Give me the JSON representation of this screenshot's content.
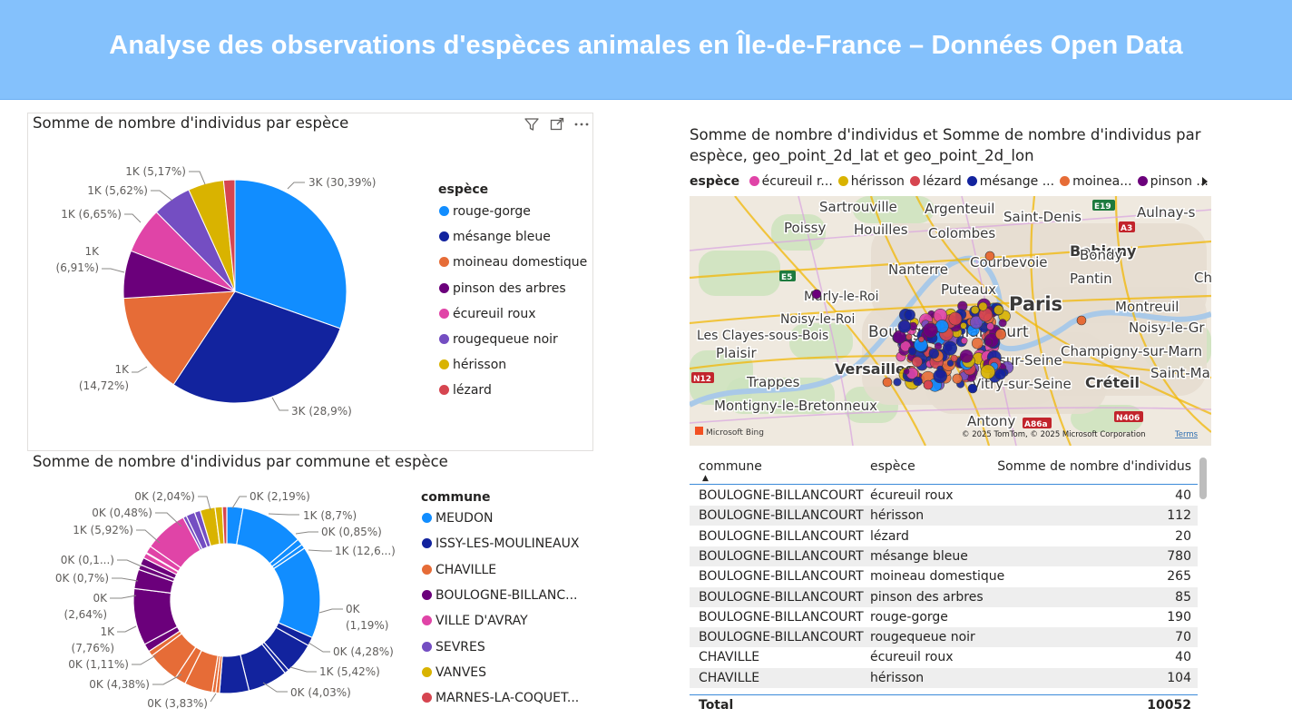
{
  "banner": {
    "title": "Analyse des observations d'espèces animales en Île-de-France – Données Open Data"
  },
  "pie_visual": {
    "title": "Somme de nombre d'individus par espèce",
    "legend_title": "espèce",
    "icons": [
      "filter-icon",
      "focus-mode-icon",
      "more-options-icon"
    ]
  },
  "donut_visual": {
    "title": "Somme de nombre d'individus par commune et espèce",
    "legend_title": "commune"
  },
  "map_visual": {
    "title": "Somme de nombre d'individus et Somme de nombre d'individus par espèce, geo_point_2d_lat et geo_point_2d_lon",
    "legend_title": "espèce",
    "legend_items": [
      {
        "label": "écureuil r...",
        "color": "#e044a7"
      },
      {
        "label": "hérisson",
        "color": "#d9b300"
      },
      {
        "label": "lézard",
        "color": "#d64550"
      },
      {
        "label": "mésange ...",
        "color": "#12239e"
      },
      {
        "label": "moinea...",
        "color": "#e66c37"
      },
      {
        "label": "pinson ...",
        "color": "#6b007b"
      }
    ],
    "places": [
      {
        "name": "Sartrouville"
      },
      {
        "name": "Argenteuil"
      },
      {
        "name": "Saint-Denis"
      },
      {
        "name": "Aulnay-s"
      },
      {
        "name": "Poissy"
      },
      {
        "name": "Houilles"
      },
      {
        "name": "Colombes"
      },
      {
        "name": "Bobigny"
      },
      {
        "name": "Bondy"
      },
      {
        "name": "Nanterre"
      },
      {
        "name": "Courbevoie"
      },
      {
        "name": "Pantin"
      },
      {
        "name": "Ch"
      },
      {
        "name": "Marly-le-Roi"
      },
      {
        "name": "Puteaux"
      },
      {
        "name": "Paris"
      },
      {
        "name": "Montreuil"
      },
      {
        "name": "Noisy-le-Roi"
      },
      {
        "name": "Noisy-le-Gr"
      },
      {
        "name": "Les Clayes-sous-Bois"
      },
      {
        "name": "Boulogne-Billancourt"
      },
      {
        "name": "Plaisir"
      },
      {
        "name": "Champigny-sur-Marn"
      },
      {
        "name": "Versailles"
      },
      {
        "name": "Issy-sur-Seine"
      },
      {
        "name": "Saint-Ma"
      },
      {
        "name": "Trappes"
      },
      {
        "name": "Vitry-sur-Seine"
      },
      {
        "name": "Créteil"
      },
      {
        "name": "Montigny-le-Bretonneux"
      },
      {
        "name": "Antony"
      }
    ],
    "road_badges": [
      "E19",
      "A3",
      "E5",
      "N12",
      "A86a",
      "N406"
    ],
    "attribution": "© 2025 TomTom, © 2025 Microsoft Corporation",
    "terms": "Terms",
    "bing": "Microsoft Bing"
  },
  "colors": {
    "rouge-gorge": "#118dff",
    "mésange bleue": "#12239e",
    "moineau domestique": "#e66c37",
    "pinson des arbres": "#6b007b",
    "écureuil roux": "#e044a7",
    "rougequeue noir": "#744ec2",
    "hérisson": "#d9b300",
    "lézard": "#d64550",
    "banner": "#84c1fc"
  },
  "chart_data": [
    {
      "type": "pie",
      "title": "Somme de nombre d'individus par espèce",
      "legend_title": "espèce",
      "legend_position": "right",
      "slices": [
        {
          "name": "rouge-gorge",
          "percent": 30.39,
          "label": "3K (30,39%)",
          "color": "#118dff"
        },
        {
          "name": "mésange bleue",
          "percent": 28.9,
          "label": "3K (28,9%)",
          "color": "#12239e"
        },
        {
          "name": "moineau domestique",
          "percent": 14.72,
          "label": "1K (14,72%)",
          "color": "#e66c37"
        },
        {
          "name": "pinson des arbres",
          "percent": 6.91,
          "label": "1K (6,91%)",
          "color": "#6b007b"
        },
        {
          "name": "écureuil roux",
          "percent": 6.65,
          "label": "1K (6,65%)",
          "color": "#e044a7"
        },
        {
          "name": "rougequeue noir",
          "percent": 5.62,
          "label": "1K (5,62%)",
          "color": "#744ec2"
        },
        {
          "name": "hérisson",
          "percent": 5.17,
          "label": "1K (5,17%)",
          "color": "#d9b300"
        },
        {
          "name": "lézard",
          "percent": 1.64,
          "label": "",
          "color": "#d64550"
        }
      ]
    },
    {
      "type": "pie",
      "subtype": "donut",
      "title": "Somme de nombre d'individus par commune et espèce",
      "legend_title": "commune",
      "legend_position": "right",
      "legend": [
        {
          "name": "MEUDON",
          "color": "#118dff"
        },
        {
          "name": "ISSY-LES-MOULINEAUX",
          "color": "#12239e"
        },
        {
          "name": "CHAVILLE",
          "color": "#e66c37"
        },
        {
          "name": "BOULOGNE-BILLANC...",
          "color": "#6b007b"
        },
        {
          "name": "VILLE D'AVRAY",
          "color": "#e044a7"
        },
        {
          "name": "SEVRES",
          "color": "#744ec2"
        },
        {
          "name": "VANVES",
          "color": "#d9b300"
        },
        {
          "name": "MARNES-LA-COQUET...",
          "color": "#d64550"
        }
      ],
      "groups": [
        {
          "commune": "MEUDON",
          "color": "#118dff",
          "segments": [
            2.19,
            8.7,
            0.85,
            0.6,
            12.6
          ]
        },
        {
          "commune": "ISSY-LES-MOULINEAUX",
          "color": "#12239e",
          "segments": [
            1.19,
            4.28,
            0.6,
            5.42,
            4.03
          ]
        },
        {
          "commune": "CHAVILLE",
          "color": "#e66c37",
          "segments": [
            0.5,
            0.5,
            3.83,
            1.5,
            4.38,
            0.7
          ]
        },
        {
          "commune": "BOULOGNE-BILLANCOURT",
          "color": "#6b007b",
          "segments": [
            1.11,
            7.76,
            2.64,
            0.7,
            1.0
          ]
        },
        {
          "commune": "VILLE D'AVRAY",
          "color": "#e044a7",
          "segments": [
            0.7,
            0.1,
            1.0,
            5.92
          ]
        },
        {
          "commune": "SEVRES",
          "color": "#744ec2",
          "segments": [
            0.48,
            1.2,
            0.8
          ]
        },
        {
          "commune": "VANVES",
          "color": "#d9b300",
          "segments": [
            2.04,
            1.0
          ]
        },
        {
          "commune": "MARNES-LA-COQUETTE",
          "color": "#d64550",
          "segments": [
            0.6
          ]
        }
      ],
      "labels": [
        "0K (2,19%)",
        "1K (8,7%)",
        "0K (0,85%)",
        "1K (12,6...)",
        "0K (1,19%)",
        "0K (4,28%)",
        "1K (5,42%)",
        "0K (4,03%)",
        "0K (3,83%)",
        "0K (4,38%)",
        "0K (1,11%)",
        "1K (7,76%)",
        "0K (2,64%)",
        "0K (0,7%)",
        "0K (0,1...)",
        "1K (5,92%)",
        "0K (0,48%)",
        "0K (2,04%)"
      ]
    }
  ],
  "table": {
    "headers": [
      "commune",
      "espèce",
      "Somme de nombre d'individus"
    ],
    "rows": [
      [
        "BOULOGNE-BILLANCOURT",
        "écureuil roux",
        "40"
      ],
      [
        "BOULOGNE-BILLANCOURT",
        "hérisson",
        "112"
      ],
      [
        "BOULOGNE-BILLANCOURT",
        "lézard",
        "20"
      ],
      [
        "BOULOGNE-BILLANCOURT",
        "mésange bleue",
        "780"
      ],
      [
        "BOULOGNE-BILLANCOURT",
        "moineau domestique",
        "265"
      ],
      [
        "BOULOGNE-BILLANCOURT",
        "pinson des arbres",
        "85"
      ],
      [
        "BOULOGNE-BILLANCOURT",
        "rouge-gorge",
        "190"
      ],
      [
        "BOULOGNE-BILLANCOURT",
        "rougequeue noir",
        "70"
      ],
      [
        "CHAVILLE",
        "écureuil roux",
        "40"
      ],
      [
        "CHAVILLE",
        "hérisson",
        "104"
      ]
    ],
    "total_label": "Total",
    "total_value": "10052"
  }
}
